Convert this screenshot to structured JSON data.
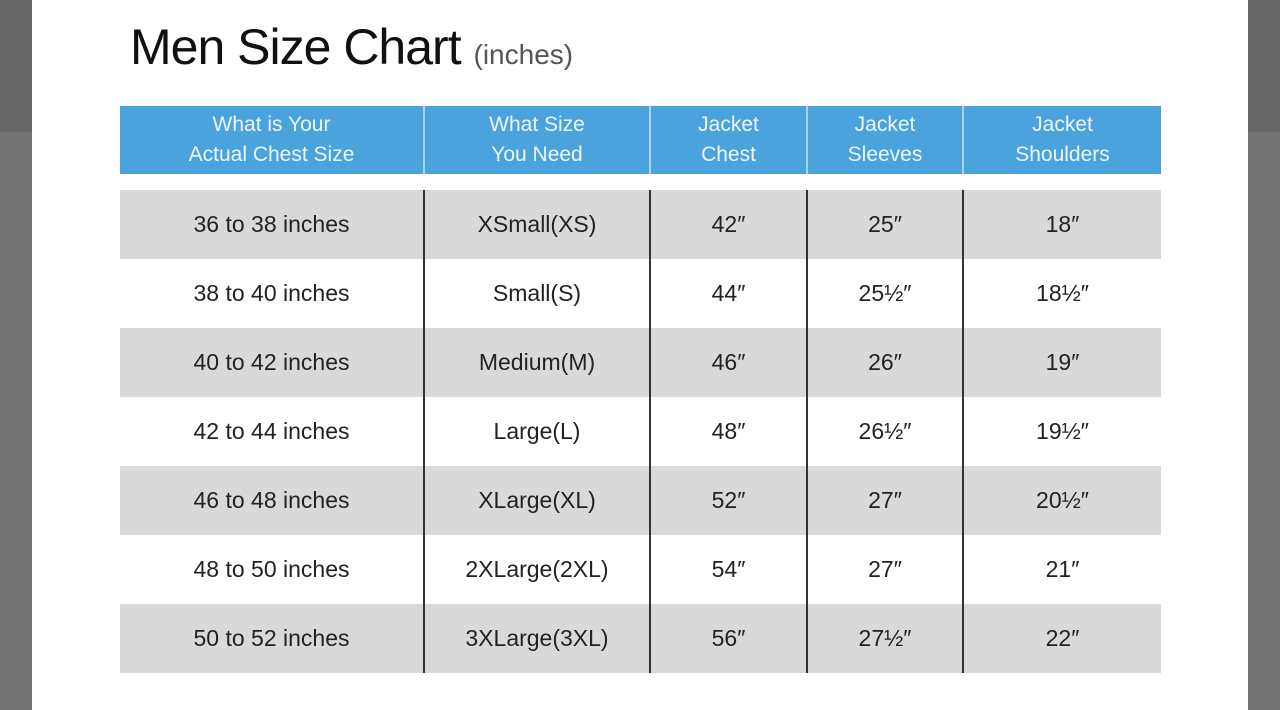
{
  "title": "Men Size Chart",
  "title_unit": "(inches)",
  "colors": {
    "header": "#4aa3dc",
    "stripe": "#d9d9d9"
  },
  "headers": [
    "What is Your\nActual Chest Size",
    "What Size\nYou Need",
    "Jacket\nChest",
    "Jacket\nSleeves",
    "Jacket\nShoulders"
  ],
  "rows": [
    [
      "36 to 38 inches",
      "XSmall(XS)",
      "42″",
      "25″",
      "18″"
    ],
    [
      "38 to 40 inches",
      "Small(S)",
      "44″",
      "25½″",
      "18½″"
    ],
    [
      "40 to 42 inches",
      "Medium(M)",
      "46″",
      "26″",
      "19″"
    ],
    [
      "42 to 44 inches",
      "Large(L)",
      "48″",
      "26½″",
      "19½″"
    ],
    [
      "46 to 48 inches",
      "XLarge(XL)",
      "52″",
      "27″",
      "20½″"
    ],
    [
      "48 to 50 inches",
      "2XLarge(2XL)",
      "54″",
      "27″",
      "21″"
    ],
    [
      "50 to 52 inches",
      "3XLarge(3XL)",
      "56″",
      "27½″",
      "22″"
    ]
  ]
}
